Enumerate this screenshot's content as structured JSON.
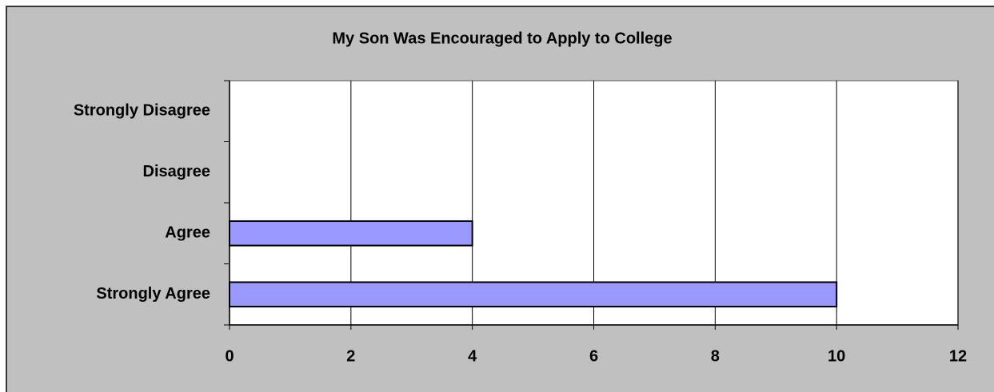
{
  "chart_data": {
    "type": "hbar",
    "title": "My Son Was Encouraged to Apply to College",
    "categories": [
      "Strongly Disagree",
      "Disagree",
      "Agree",
      "Strongly Agree"
    ],
    "values": [
      0,
      0,
      4,
      10
    ],
    "color": "#9999ff",
    "xlim": [
      0,
      12
    ],
    "xticks": [
      0,
      2,
      4,
      6,
      8,
      10,
      12
    ],
    "grid": true
  }
}
